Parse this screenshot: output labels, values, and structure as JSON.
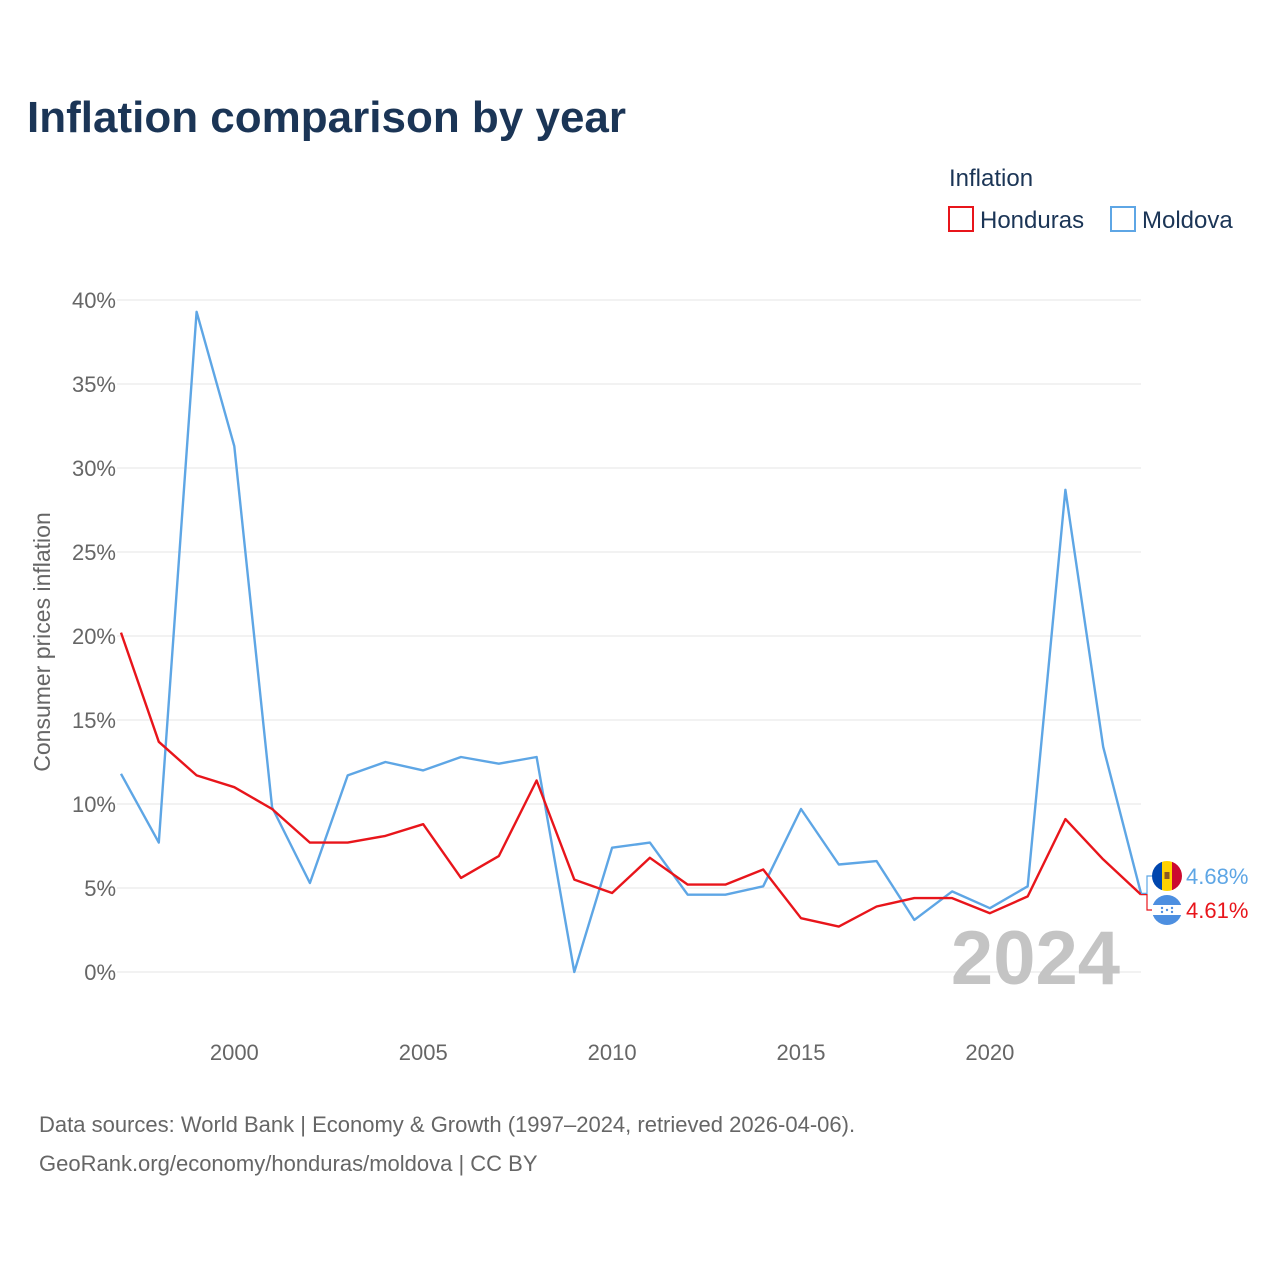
{
  "chart_data": {
    "type": "line",
    "title": "Inflation comparison by year",
    "legend_title": "Inflation",
    "legend_position": "top-right",
    "ylabel": "Consumer prices inflation",
    "xlabel": "",
    "x": [
      1997,
      1998,
      1999,
      2000,
      2001,
      2002,
      2003,
      2004,
      2005,
      2006,
      2007,
      2008,
      2009,
      2010,
      2011,
      2012,
      2013,
      2014,
      2015,
      2016,
      2017,
      2018,
      2019,
      2020,
      2021,
      2022,
      2023,
      2024
    ],
    "xlim": [
      1997,
      2024
    ],
    "ylim": [
      0,
      40
    ],
    "x_ticks": [
      2000,
      2005,
      2010,
      2015,
      2020
    ],
    "x_tick_labels": [
      "2000",
      "2005",
      "2010",
      "2015",
      "2020"
    ],
    "y_ticks": [
      0,
      5,
      10,
      15,
      20,
      25,
      30,
      35,
      40
    ],
    "y_tick_labels": [
      "0%",
      "5%",
      "10%",
      "15%",
      "20%",
      "25%",
      "30%",
      "35%",
      "40%"
    ],
    "grid": true,
    "current_year_label": "2024",
    "series": [
      {
        "name": "Honduras",
        "color": "#e8151b",
        "end_label": "4.61%",
        "flag_icon": "honduras-flag-icon",
        "values": [
          20.2,
          13.7,
          11.7,
          11.0,
          9.7,
          7.7,
          7.7,
          8.1,
          8.8,
          5.6,
          6.9,
          11.4,
          5.5,
          4.7,
          6.8,
          5.2,
          5.2,
          6.1,
          3.2,
          2.7,
          3.9,
          4.4,
          4.4,
          3.5,
          4.5,
          9.1,
          6.7,
          4.61
        ]
      },
      {
        "name": "Moldova",
        "color": "#5ea6e5",
        "end_label": "4.68%",
        "flag_icon": "moldova-flag-icon",
        "values": [
          11.8,
          7.7,
          39.3,
          31.3,
          9.8,
          5.3,
          11.7,
          12.5,
          12.0,
          12.8,
          12.4,
          12.8,
          0.0,
          7.4,
          7.7,
          4.6,
          4.6,
          5.1,
          9.7,
          6.4,
          6.6,
          3.1,
          4.8,
          3.8,
          5.1,
          28.7,
          13.4,
          4.68
        ]
      }
    ]
  },
  "footer": {
    "source_line_1": "Data sources: World Bank | Economy & Growth (1997–2024, retrieved 2026-04-06).",
    "source_line_2": "GeoRank.org/economy/honduras/moldova | CC BY"
  }
}
